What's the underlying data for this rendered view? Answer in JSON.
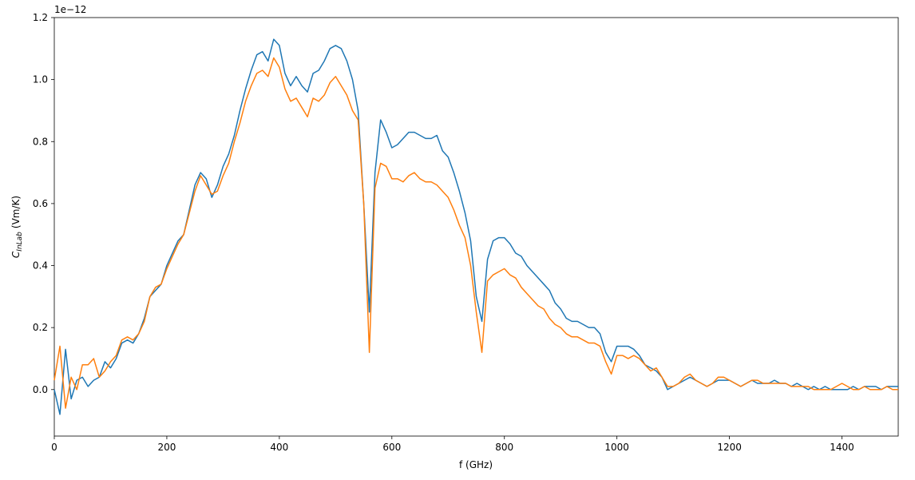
{
  "chart_data": {
    "type": "line",
    "offset_text": "1e−12",
    "xlabel": "f (GHz)",
    "ylabel": "C",
    "ylabel_subscript": "InLab",
    "ylabel_unit": "(Vm/K)",
    "xlim": [
      0,
      1500
    ],
    "xticks": [
      0,
      200,
      400,
      600,
      800,
      1000,
      1200,
      1400
    ],
    "ylim": [
      -0.15,
      1.2
    ],
    "yticks": [
      {
        "value": 0,
        "label": "0.0"
      },
      0.2,
      0.4,
      0.6,
      0.8,
      {
        "value": 1,
        "label": "1.0"
      },
      1.2
    ],
    "x": [
      0,
      10,
      20,
      30,
      40,
      50,
      60,
      70,
      80,
      90,
      100,
      110,
      120,
      130,
      140,
      150,
      160,
      170,
      180,
      190,
      200,
      210,
      220,
      230,
      240,
      250,
      260,
      270,
      280,
      290,
      300,
      310,
      320,
      330,
      340,
      350,
      360,
      370,
      380,
      390,
      400,
      410,
      420,
      430,
      440,
      450,
      460,
      470,
      480,
      490,
      500,
      510,
      520,
      530,
      540,
      550,
      560,
      570,
      580,
      590,
      600,
      610,
      620,
      630,
      640,
      650,
      660,
      670,
      680,
      690,
      700,
      710,
      720,
      730,
      740,
      750,
      760,
      770,
      780,
      790,
      800,
      810,
      820,
      830,
      840,
      850,
      860,
      870,
      880,
      890,
      900,
      910,
      920,
      930,
      940,
      950,
      960,
      970,
      980,
      990,
      1000,
      1010,
      1020,
      1030,
      1040,
      1050,
      1060,
      1070,
      1080,
      1090,
      1100,
      1110,
      1120,
      1130,
      1140,
      1150,
      1160,
      1170,
      1180,
      1190,
      1200,
      1210,
      1220,
      1230,
      1240,
      1250,
      1260,
      1270,
      1280,
      1290,
      1300,
      1310,
      1320,
      1330,
      1340,
      1350,
      1360,
      1370,
      1380,
      1390,
      1400,
      1410,
      1420,
      1430,
      1440,
      1450,
      1460,
      1470,
      1480,
      1490,
      1500
    ],
    "series": [
      {
        "color": "#1f77b4",
        "values": [
          0.0,
          -0.08,
          0.13,
          -0.03,
          0.03,
          0.04,
          0.01,
          0.03,
          0.04,
          0.09,
          0.07,
          0.1,
          0.15,
          0.16,
          0.15,
          0.18,
          0.23,
          0.3,
          0.32,
          0.34,
          0.4,
          0.44,
          0.48,
          0.5,
          0.58,
          0.66,
          0.7,
          0.68,
          0.62,
          0.66,
          0.72,
          0.76,
          0.82,
          0.9,
          0.97,
          1.03,
          1.08,
          1.09,
          1.06,
          1.13,
          1.11,
          1.02,
          0.98,
          1.01,
          0.98,
          0.96,
          1.02,
          1.03,
          1.06,
          1.1,
          1.11,
          1.1,
          1.06,
          1.0,
          0.9,
          0.6,
          0.25,
          0.7,
          0.87,
          0.83,
          0.78,
          0.79,
          0.81,
          0.83,
          0.83,
          0.82,
          0.81,
          0.81,
          0.82,
          0.77,
          0.75,
          0.7,
          0.64,
          0.57,
          0.48,
          0.3,
          0.22,
          0.42,
          0.48,
          0.49,
          0.49,
          0.47,
          0.44,
          0.43,
          0.4,
          0.38,
          0.36,
          0.34,
          0.32,
          0.28,
          0.26,
          0.23,
          0.22,
          0.22,
          0.21,
          0.2,
          0.2,
          0.18,
          0.12,
          0.09,
          0.14,
          0.14,
          0.14,
          0.13,
          0.11,
          0.08,
          0.07,
          0.06,
          0.04,
          0.0,
          0.01,
          0.02,
          0.03,
          0.04,
          0.03,
          0.02,
          0.01,
          0.02,
          0.03,
          0.03,
          0.03,
          0.02,
          0.01,
          0.02,
          0.03,
          0.02,
          0.02,
          0.02,
          0.03,
          0.02,
          0.02,
          0.01,
          0.02,
          0.01,
          0.0,
          0.01,
          0.0,
          0.01,
          0.0,
          0.0,
          0.0,
          0.0,
          0.01,
          0.0,
          0.01,
          0.01,
          0.01,
          0.0,
          0.01,
          0.01,
          0.01
        ]
      },
      {
        "color": "#ff7f0e",
        "values": [
          0.03,
          0.14,
          -0.06,
          0.04,
          0.0,
          0.08,
          0.08,
          0.1,
          0.04,
          0.06,
          0.09,
          0.11,
          0.16,
          0.17,
          0.16,
          0.18,
          0.22,
          0.3,
          0.33,
          0.34,
          0.39,
          0.43,
          0.47,
          0.5,
          0.57,
          0.64,
          0.69,
          0.66,
          0.63,
          0.64,
          0.69,
          0.73,
          0.8,
          0.86,
          0.93,
          0.98,
          1.02,
          1.03,
          1.01,
          1.07,
          1.04,
          0.97,
          0.93,
          0.94,
          0.91,
          0.88,
          0.94,
          0.93,
          0.95,
          0.99,
          1.01,
          0.98,
          0.95,
          0.9,
          0.87,
          0.6,
          0.12,
          0.65,
          0.73,
          0.72,
          0.68,
          0.68,
          0.67,
          0.69,
          0.7,
          0.68,
          0.67,
          0.67,
          0.66,
          0.64,
          0.62,
          0.58,
          0.53,
          0.49,
          0.4,
          0.25,
          0.12,
          0.35,
          0.37,
          0.38,
          0.39,
          0.37,
          0.36,
          0.33,
          0.31,
          0.29,
          0.27,
          0.26,
          0.23,
          0.21,
          0.2,
          0.18,
          0.17,
          0.17,
          0.16,
          0.15,
          0.15,
          0.14,
          0.09,
          0.05,
          0.11,
          0.11,
          0.1,
          0.11,
          0.1,
          0.08,
          0.06,
          0.07,
          0.04,
          0.01,
          0.01,
          0.02,
          0.04,
          0.05,
          0.03,
          0.02,
          0.01,
          0.02,
          0.04,
          0.04,
          0.03,
          0.02,
          0.01,
          0.02,
          0.03,
          0.03,
          0.02,
          0.02,
          0.02,
          0.02,
          0.02,
          0.01,
          0.01,
          0.01,
          0.01,
          0.0,
          0.0,
          0.0,
          0.0,
          0.01,
          0.02,
          0.01,
          0.0,
          0.0,
          0.01,
          0.0,
          0.0,
          0.0,
          0.01,
          0.0,
          0.0
        ]
      }
    ]
  }
}
